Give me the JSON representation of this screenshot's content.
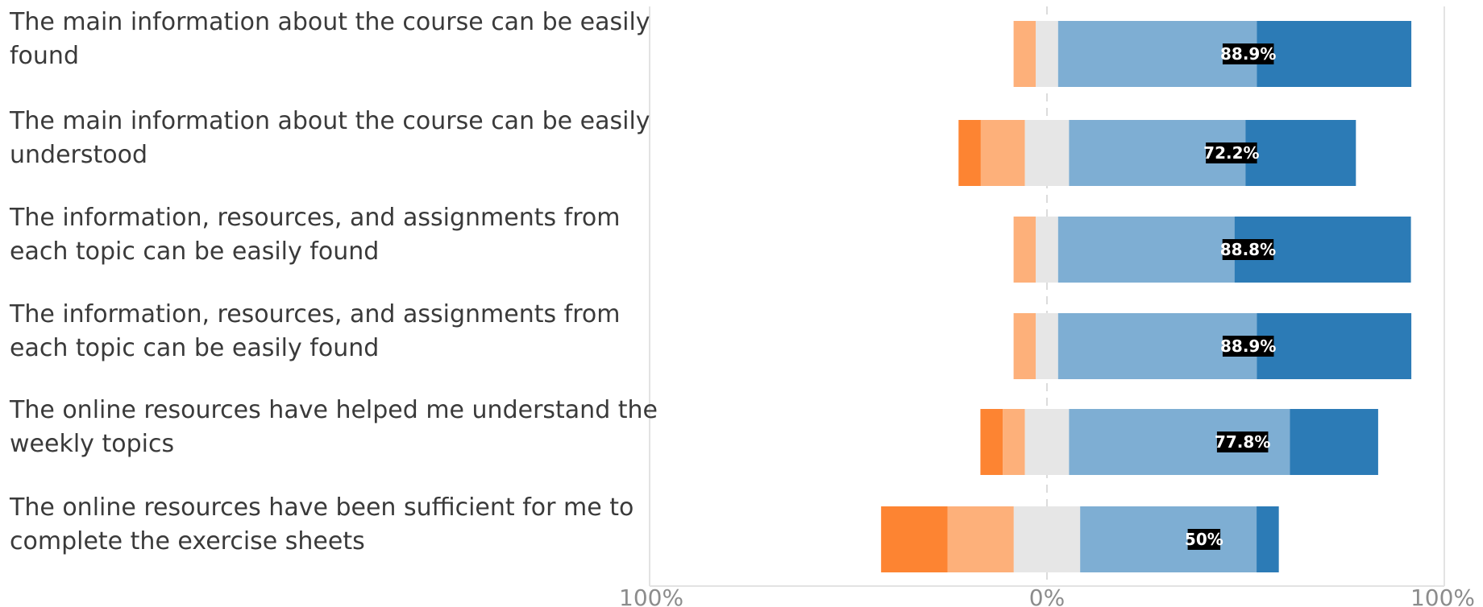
{
  "chart_data": {
    "type": "bar",
    "orientation": "horizontal-diverging",
    "categories": [
      [
        "The main information about the course can be easily",
        "found"
      ],
      [
        "The main information about the course can be easily",
        "understood"
      ],
      [
        "The information, resources, and assignments from",
        "each topic can be easily found"
      ],
      [
        "The information, resources, and assignments from",
        "each topic can be easily found"
      ],
      [
        "The online resources have helped me understand the",
        "weekly topics"
      ],
      [
        "The online resources have been sufficient for me to",
        "complete the exercise sheets"
      ]
    ],
    "series": [
      {
        "color": "#fd8432",
        "values": [
          0,
          5.6,
          0,
          0,
          5.6,
          16.7
        ]
      },
      {
        "color": "#fdb07a",
        "values": [
          5.6,
          11.1,
          5.6,
          5.6,
          5.6,
          16.7
        ]
      },
      {
        "color": "#e6e6e6",
        "values": [
          5.6,
          11.1,
          5.6,
          5.6,
          11.1,
          16.7
        ]
      },
      {
        "color": "#7eaed3",
        "values": [
          50,
          44.4,
          44.4,
          50,
          55.6,
          44.4
        ]
      },
      {
        "color": "#2c7bb6",
        "values": [
          38.9,
          27.8,
          44.4,
          38.9,
          22.2,
          5.6
        ]
      }
    ],
    "neutral_index": 2,
    "data_labels": [
      "88.9%",
      "72.2%",
      "88.8%",
      "88.9%",
      "77.8%",
      "50%"
    ],
    "xlim": [
      -100,
      100
    ],
    "x_ticks": [
      -100,
      0,
      100
    ],
    "x_tick_labels": [
      "100%",
      "0%",
      "100%"
    ],
    "grid": "vertical at ±100%, dashed zero line"
  }
}
